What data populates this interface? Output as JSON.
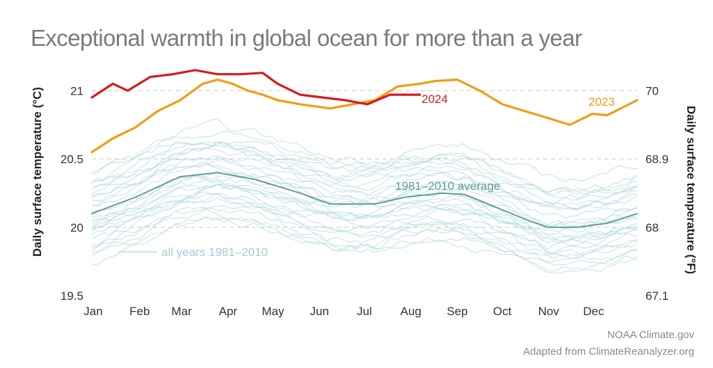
{
  "title": "Exceptional warmth in global ocean for more than a year",
  "credits": [
    "NOAA Climate.gov",
    "Adapted from ClimateReanalyzer.org"
  ],
  "colors": {
    "y2024": "#d7191c",
    "y2023": "#f39c12",
    "average": "#5f9e94",
    "allyears": "#b5dde0",
    "grid": "#c8c8c8"
  },
  "chart_data": {
    "type": "line",
    "title": "Exceptional warmth in global ocean for more than a year",
    "ylabel": "Daily surface temperature (°C)",
    "ylabel_right": "Daily surface temperature (°F)",
    "ylim": [
      19.5,
      21.5
    ],
    "yticks": [
      "19.5",
      "20",
      "20.5",
      "21"
    ],
    "yticks_right": [
      "67.1",
      "68",
      "68.9",
      "70"
    ],
    "months": [
      "Jan",
      "Feb",
      "Mar",
      "Apr",
      "May",
      "Jun",
      "Jul",
      "Aug",
      "Sep",
      "Oct",
      "Nov",
      "Dec"
    ],
    "grid": "dashed horizontal",
    "series": [
      {
        "name": "2024",
        "x": [
          1,
          15,
          25,
          40,
          55,
          70,
          85,
          100,
          115,
          125,
          140,
          155,
          170,
          185,
          200,
          210,
          220
        ],
        "values": [
          20.95,
          21.05,
          21.0,
          21.1,
          21.12,
          21.15,
          21.12,
          21.12,
          21.13,
          21.05,
          20.97,
          20.95,
          20.93,
          20.9,
          20.97,
          20.97,
          20.97
        ]
      },
      {
        "name": "2023",
        "x": [
          1,
          15,
          30,
          45,
          60,
          75,
          85,
          95,
          105,
          115,
          125,
          140,
          160,
          175,
          190,
          205,
          220,
          230,
          245,
          260,
          275,
          290,
          305,
          320,
          335,
          345,
          365
        ],
        "values": [
          20.55,
          20.65,
          20.73,
          20.85,
          20.93,
          21.05,
          21.08,
          21.05,
          21.0,
          20.97,
          20.93,
          20.9,
          20.87,
          20.9,
          20.93,
          21.03,
          21.05,
          21.07,
          21.08,
          21.0,
          20.9,
          20.85,
          20.8,
          20.75,
          20.83,
          20.82,
          20.93
        ]
      },
      {
        "name": "1981–2010 average",
        "x": [
          1,
          30,
          60,
          85,
          110,
          140,
          160,
          190,
          210,
          235,
          250,
          270,
          290,
          305,
          325,
          345,
          365
        ],
        "values": [
          20.1,
          20.22,
          20.37,
          20.4,
          20.35,
          20.25,
          20.17,
          20.17,
          20.22,
          20.25,
          20.24,
          20.15,
          20.06,
          20.0,
          20.0,
          20.03,
          20.1
        ]
      }
    ],
    "annotations": [
      "2024",
      "2023",
      "1981–2010 average",
      "all years 1981–2010"
    ]
  }
}
